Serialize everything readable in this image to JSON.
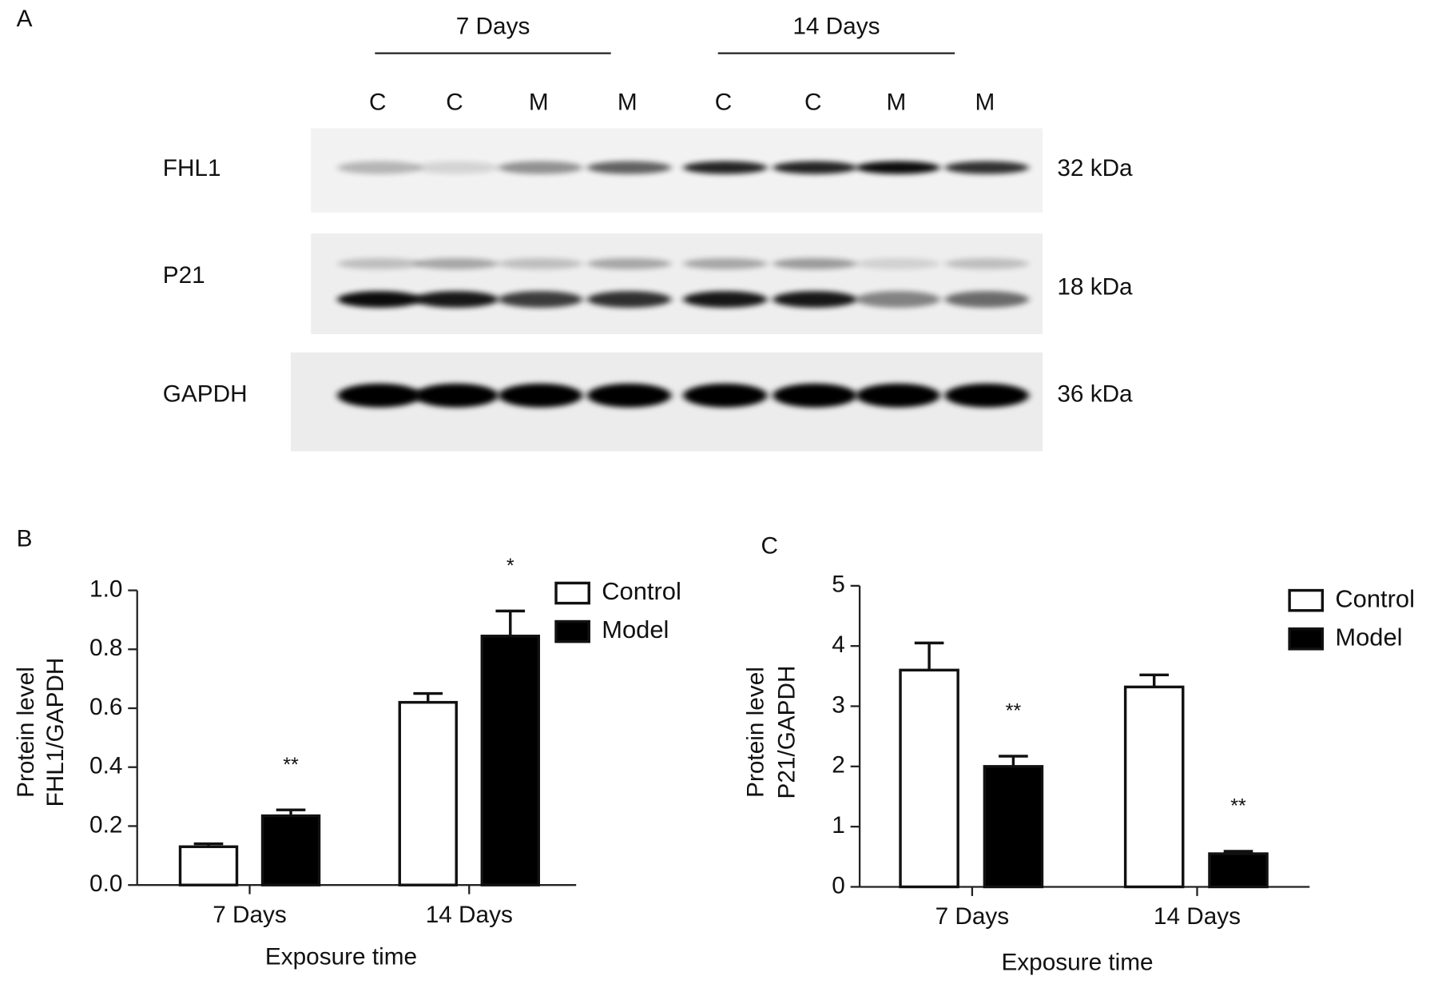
{
  "panel_labels": [
    "A",
    "B",
    "C"
  ],
  "blot": {
    "groups": [
      "7 Days",
      "14 Days"
    ],
    "lanes": [
      "C",
      "C",
      "M",
      "M",
      "C",
      "C",
      "M",
      "M"
    ],
    "rows": [
      {
        "name": "FHL1",
        "size": "32 kDa"
      },
      {
        "name": "P21",
        "size": "18 kDa"
      },
      {
        "name": "GAPDH",
        "size": "36 kDa"
      }
    ]
  },
  "chart_data": [
    {
      "type": "bar",
      "ylabel": [
        "Protein level",
        "FHL1/GAPDH"
      ],
      "xlabel": "Exposure time",
      "categories": [
        "7 Days",
        "14 Days"
      ],
      "series": [
        {
          "name": "Control",
          "color": "#ffffff",
          "values": [
            0.13,
            0.62
          ],
          "errors": [
            0.01,
            0.03
          ]
        },
        {
          "name": "Model",
          "color": "#000000",
          "values": [
            0.235,
            0.845
          ],
          "errors": [
            0.02,
            0.085
          ],
          "labels": [
            "**",
            "*"
          ]
        }
      ],
      "ylim": [
        0,
        1.0
      ],
      "yticks": [
        {
          "value": 0,
          "label": "0.0"
        },
        0.2,
        0.4,
        0.6,
        0.8,
        {
          "value": 1.0,
          "label": "1.0"
        }
      ],
      "legend": "top-right"
    },
    {
      "type": "bar",
      "ylabel": [
        "Protein level",
        "P21/GAPDH"
      ],
      "xlabel": "Exposure time",
      "categories": [
        "7 Days",
        "14 Days"
      ],
      "series": [
        {
          "name": "Control",
          "color": "#ffffff",
          "values": [
            3.6,
            3.32
          ],
          "errors": [
            0.45,
            0.2
          ]
        },
        {
          "name": "Model",
          "color": "#000000",
          "values": [
            2.0,
            0.55
          ],
          "errors": [
            0.17,
            0.04
          ],
          "labels": [
            "**",
            "**"
          ]
        }
      ],
      "ylim": [
        0,
        5
      ],
      "yticks": [
        0,
        1,
        2,
        3,
        4,
        5
      ],
      "legend": "top-right"
    }
  ]
}
